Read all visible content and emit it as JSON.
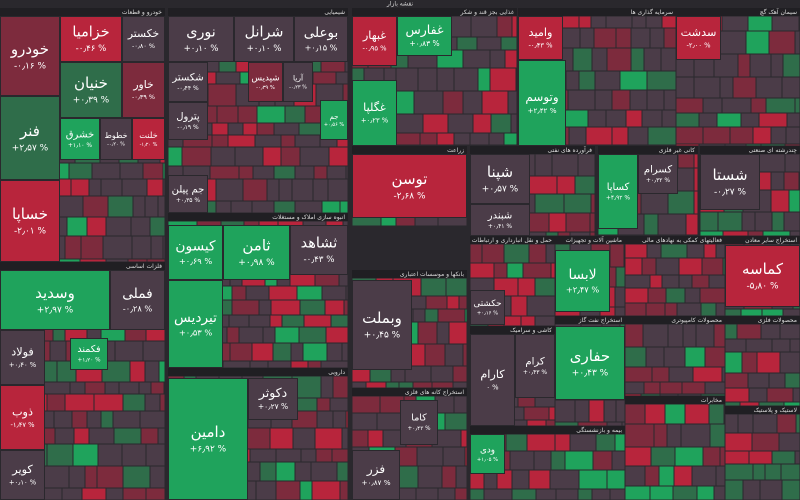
{
  "header": {
    "title": "نقشه بازار"
  },
  "sectors": [
    {
      "title": "خودرو و قطعات",
      "tiles": [
        {
          "name": "خودرو",
          "change": "-۰٫۱۶ %"
        },
        {
          "name": "فنر",
          "change": "+۲٫۵۷ %"
        },
        {
          "name": "خساپا",
          "change": "-۲٫۰۱ %"
        },
        {
          "name": "خزامیا",
          "change": "-۰٫۴۶ %"
        },
        {
          "name": "خکستر",
          "change": "-۰٫۸۰ %"
        },
        {
          "name": "خنیان",
          "change": "+۰٫۳۹ %"
        },
        {
          "name": "خاور",
          "change": "-۰٫۳۹ %"
        },
        {
          "name": "خشرق",
          "change": "+۱٫۱۰ %"
        },
        {
          "name": "خطوط",
          "change": "-۰٫۲۰ %"
        },
        {
          "name": "خلنت",
          "change": "-۱٫۲۰ %"
        }
      ]
    },
    {
      "title": "فلزات اساسی",
      "tiles": [
        {
          "name": "وسدید",
          "change": "+۲٫۹۷ %"
        },
        {
          "name": "فملی",
          "change": "-۰٫۲۸ %"
        },
        {
          "name": "فولاد",
          "change": "+۰٫۴۰ %"
        },
        {
          "name": "ذوب",
          "change": "-۱٫۴۷ %"
        },
        {
          "name": "کویر",
          "change": "+۰٫۱۰ %"
        },
        {
          "name": "فکمند",
          "change": "+۱٫۲۰ %"
        }
      ]
    },
    {
      "title": "شیمیایی",
      "tiles": [
        {
          "name": "نوری",
          "change": "+۰٫۱۰ %"
        },
        {
          "name": "شرانل",
          "change": "+۰٫۱۰ %"
        },
        {
          "name": "بوعلی",
          "change": "+۰٫۱۵ %"
        },
        {
          "name": "شکستر",
          "change": "-۰٫۴۴ %"
        },
        {
          "name": "شپدیس",
          "change": "-۰٫۳۹ %"
        },
        {
          "name": "آریا",
          "change": "-۰٫۲۳ %"
        },
        {
          "name": "پترول",
          "change": "-۰٫۱۹ %"
        },
        {
          "name": "جم پیلن",
          "change": "+۰٫۳۵ %"
        },
        {
          "name": "جم",
          "change": "+۰٫۵۶ %"
        }
      ]
    },
    {
      "title": "انبوه سازی املاک و مستغلات",
      "tiles": [
        {
          "name": "کیسون",
          "change": "+۰٫۶۹ %"
        },
        {
          "name": "تیردیس",
          "change": "+۰٫۵۳ %"
        },
        {
          "name": "ثامن",
          "change": "+۰٫۹۸ %"
        },
        {
          "name": "ثشاهد",
          "change": "-۰٫۴۳ %"
        }
      ]
    },
    {
      "title": "دارویی",
      "tiles": [
        {
          "name": "دامین",
          "change": "+۶٫۹۲ %"
        },
        {
          "name": "دکوثر",
          "change": "+۰٫۲۷ %"
        }
      ]
    },
    {
      "title": "بانکها و موسسات اعتباری",
      "tiles": [
        {
          "name": "وبملت",
          "change": "+۰٫۴۵ %"
        }
      ]
    },
    {
      "title": "استخراج کانه های فلزی",
      "tiles": [
        {
          "name": "کاما",
          "change": "+۰٫۴۳ %"
        },
        {
          "name": "فزر",
          "change": "+۰٫۸۷ %"
        }
      ]
    },
    {
      "title": "غذایی بجز قند و شکر",
      "tiles": [
        {
          "name": "غبهار",
          "change": "-۰٫۹۵ %"
        },
        {
          "name": "غفارس",
          "change": "+۰٫۸۳ %"
        },
        {
          "name": "غگلپا",
          "change": "+۰٫۲۳ %"
        }
      ]
    },
    {
      "title": "زراعت",
      "tiles": [
        {
          "name": "توسن",
          "change": "-۲٫۶۸ %"
        }
      ]
    },
    {
      "title": "سرمایه گذاری ها",
      "tiles": [
        {
          "name": "وامید",
          "change": "-۰٫۴۳ %"
        },
        {
          "name": "وتوسم",
          "change": "+۲٫۴۲ %"
        }
      ]
    },
    {
      "title": "سیمان آهک گچ",
      "tiles": [
        {
          "name": "سدشت",
          "change": "-۲٫۰۰ %"
        }
      ]
    },
    {
      "title": "فرآورده های نفتی",
      "tiles": [
        {
          "name": "شپنا",
          "change": "+۰٫۵۷ %"
        },
        {
          "name": "شبندر",
          "change": "+۰٫۴۱ %"
        }
      ]
    },
    {
      "title": "کانی غیر فلزی",
      "tiles": [
        {
          "name": "کساپا",
          "change": "+۴٫۹۲ %"
        },
        {
          "name": "کسرام",
          "change": "+۰٫۳۲ %"
        }
      ]
    },
    {
      "title": "چندرشته ای صنعتی",
      "tiles": [
        {
          "name": "شستا",
          "change": "-۰٫۲۷ %"
        }
      ]
    },
    {
      "title": "استخراج سایر معادن",
      "tiles": [
        {
          "name": "کماسه",
          "change": "-۵٫۸۰ %"
        }
      ]
    },
    {
      "title": "حمل و نقل انبارداری و ارتباطات",
      "tiles": [
        {
          "name": "حکشتی",
          "change": "+۰٫۱۶ %"
        }
      ]
    },
    {
      "title": "ماشین آلات و تجهیزات",
      "tiles": [
        {
          "name": "لابسا",
          "change": "+۲٫۴۷ %"
        }
      ]
    },
    {
      "title": "استخراج نفت گاز",
      "tiles": [
        {
          "name": "حفاری",
          "change": "+۰٫۴۳ %"
        }
      ]
    },
    {
      "title": "کاشی و سرامیک",
      "tiles": [
        {
          "name": "کارام",
          "change": "۰ %"
        },
        {
          "name": "کرام",
          "change": "+۰٫۴۳ %"
        }
      ]
    },
    {
      "title": "بیمه و بازنشستگی",
      "tiles": [
        {
          "name": "ودی",
          "change": "+۱٫۰۵ %"
        }
      ]
    },
    {
      "title": "فعالیتهای کمکی به نهادهای مالی",
      "tiles": []
    },
    {
      "title": "محصولات کامپیوتری",
      "tiles": []
    },
    {
      "title": "محصولات فلزی",
      "tiles": []
    },
    {
      "title": "مخابرات",
      "tiles": []
    },
    {
      "title": "لاستیک و پلاستیک",
      "tiles": []
    }
  ]
}
